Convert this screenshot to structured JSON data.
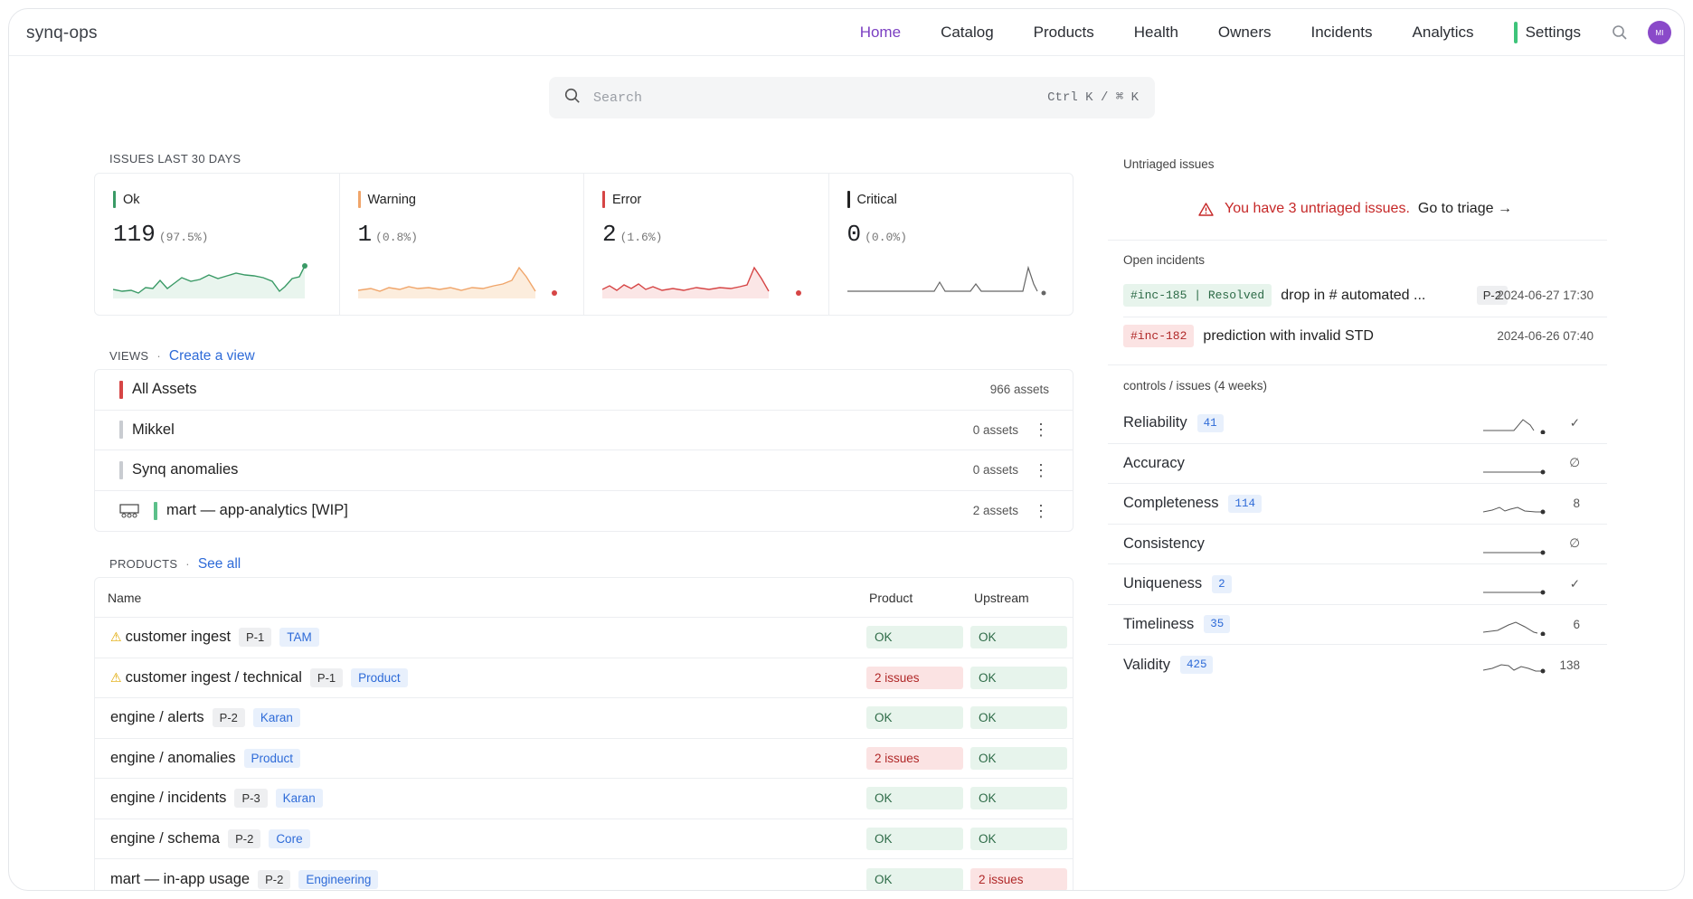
{
  "app": {
    "title": "synq-ops"
  },
  "nav": {
    "items": [
      "Home",
      "Catalog",
      "Products",
      "Health",
      "Owners",
      "Incidents",
      "Analytics",
      "Settings"
    ],
    "active": "Home",
    "avatar_initials": "MI"
  },
  "search": {
    "placeholder": "Search",
    "shortcut": "Ctrl K / ⌘ K"
  },
  "issues": {
    "label": "ISSUES LAST 30 DAYS",
    "cards": [
      {
        "title": "Ok",
        "value": "119",
        "pct": "(97.5%)",
        "color": "#3a9a66"
      },
      {
        "title": "Warning",
        "value": "1",
        "pct": "(0.8%)",
        "color": "#f0a56a"
      },
      {
        "title": "Error",
        "value": "2",
        "pct": "(1.6%)",
        "color": "#d64545"
      },
      {
        "title": "Critical",
        "value": "0",
        "pct": "(0.0%)",
        "color": "#222222"
      }
    ]
  },
  "views": {
    "label": "VIEWS",
    "sep": "·",
    "link": "Create a view",
    "rows": [
      {
        "name": "All Assets",
        "count": "966 assets",
        "color": "#d64545"
      },
      {
        "name": "Mikkel",
        "count": "0 assets",
        "color": "#c9ccd1"
      },
      {
        "name": "Synq anomalies",
        "count": "0 assets",
        "color": "#c9ccd1"
      },
      {
        "name": "mart — app-analytics [WIP]",
        "count": "2 assets",
        "color": "#5cc08a"
      }
    ]
  },
  "products": {
    "label": "PRODUCTS",
    "sep": "·",
    "link": "See all",
    "columns": [
      "Name",
      "Product",
      "Upstream"
    ],
    "rows": [
      {
        "name": "customer ingest",
        "warn": true,
        "priority": "P-1",
        "team": "TAM",
        "product": "OK",
        "upstream": "OK"
      },
      {
        "name": "customer ingest / technical",
        "warn": true,
        "priority": "P-1",
        "team": "Product",
        "product": "2 issues",
        "upstream": "OK"
      },
      {
        "name": "engine / alerts",
        "warn": false,
        "priority": "P-2",
        "team": "Karan",
        "product": "OK",
        "upstream": "OK"
      },
      {
        "name": "engine / anomalies",
        "warn": false,
        "priority": "",
        "team": "Product",
        "product": "2 issues",
        "upstream": "OK"
      },
      {
        "name": "engine / incidents",
        "warn": false,
        "priority": "P-3",
        "team": "Karan",
        "product": "OK",
        "upstream": "OK"
      },
      {
        "name": "engine / schema",
        "warn": false,
        "priority": "P-2",
        "team": "Core",
        "product": "OK",
        "upstream": "OK"
      },
      {
        "name": "mart — in-app usage",
        "warn": false,
        "priority": "P-2",
        "team": "Engineering",
        "product": "OK",
        "upstream": "2 issues"
      }
    ]
  },
  "untriaged": {
    "label": "Untriaged issues",
    "message": "You have 3 untriaged issues.",
    "link": "Go to triage →"
  },
  "incidents": {
    "label": "Open incidents",
    "rows": [
      {
        "tag": "#inc-185 | Resolved",
        "state": "resolved",
        "title": "drop in # automated ...",
        "priority": "P-2",
        "date": "2024-06-27 17:30"
      },
      {
        "tag": "#inc-182",
        "state": "open",
        "title": "prediction with invalid STD",
        "priority": "",
        "date": "2024-06-26 07:40"
      }
    ]
  },
  "controls": {
    "label": "controls / issues (4 weeks)",
    "rows": [
      {
        "name": "Reliability",
        "count": "41",
        "stat": "✓"
      },
      {
        "name": "Accuracy",
        "count": "",
        "stat": "∅"
      },
      {
        "name": "Completeness",
        "count": "114",
        "stat": "8"
      },
      {
        "name": "Consistency",
        "count": "",
        "stat": "∅"
      },
      {
        "name": "Uniqueness",
        "count": "2",
        "stat": "✓"
      },
      {
        "name": "Timeliness",
        "count": "35",
        "stat": "6"
      },
      {
        "name": "Validity",
        "count": "425",
        "stat": "138"
      }
    ]
  }
}
